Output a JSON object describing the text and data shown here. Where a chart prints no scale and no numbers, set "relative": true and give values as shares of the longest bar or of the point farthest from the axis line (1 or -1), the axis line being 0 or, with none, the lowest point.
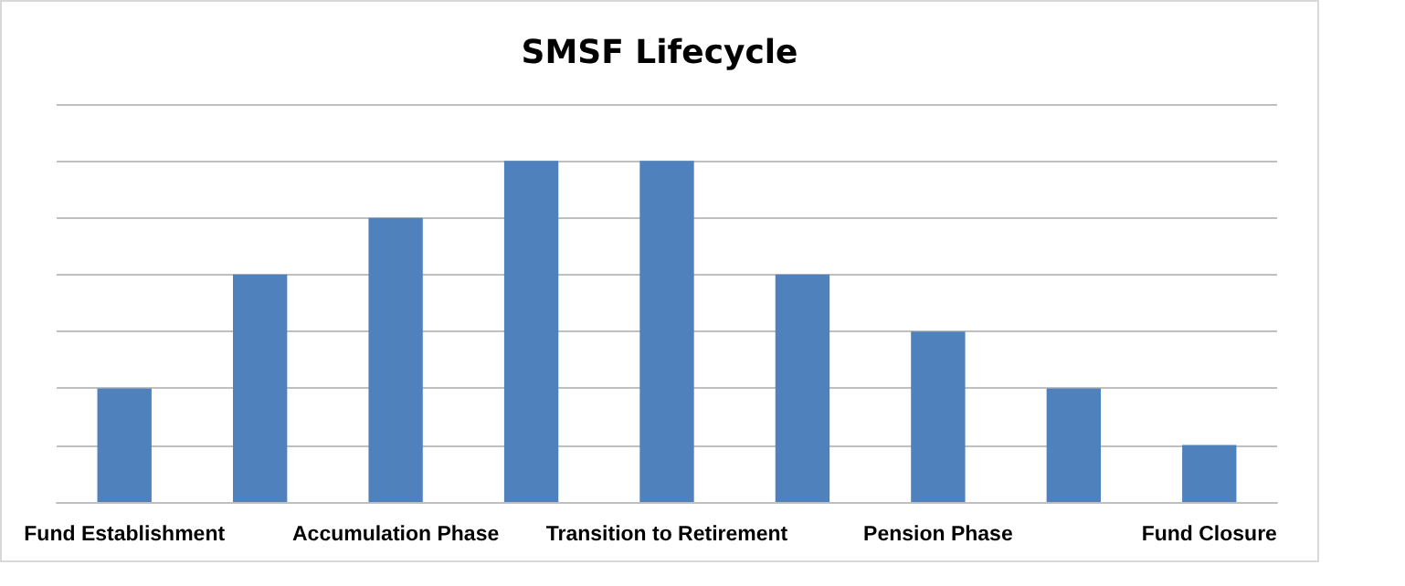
{
  "chart_data": {
    "type": "bar",
    "title": "SMSF Lifecycle",
    "relative": true,
    "grid": "y",
    "color": "#4f81bd",
    "categories": [
      "Fund Establishment",
      null,
      "Accumulation Phase",
      null,
      "Transition to Retirement",
      null,
      "Pension Phase",
      null,
      "Fund Closure"
    ],
    "values": [
      0.333,
      0.667,
      0.833,
      1,
      1,
      0.667,
      0.5,
      0.333,
      0.167
    ]
  }
}
